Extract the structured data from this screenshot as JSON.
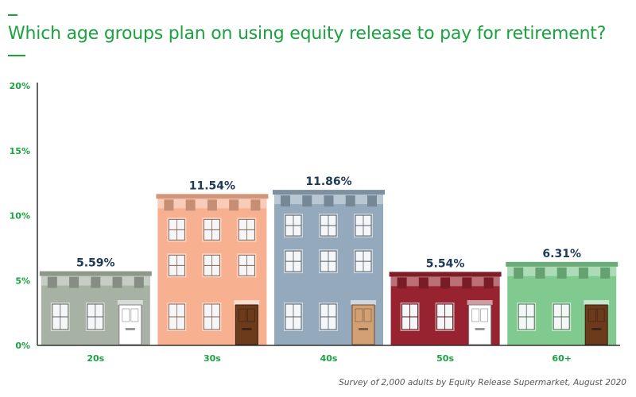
{
  "title": "Which age groups plan on using equity release to pay for retirement?",
  "footnote": "Survey of 2,000 adults by Equity Release Supermarket, August 2020",
  "colors": {
    "accent": "#1aa33f",
    "value_text": "#1e3a56",
    "axis": "#333333"
  },
  "chart_data": {
    "type": "bar",
    "title": "Which age groups plan on using equity release to pay for retirement?",
    "xlabel": "",
    "ylabel": "",
    "categories": [
      "20s",
      "30s",
      "40s",
      "50s",
      "60+"
    ],
    "values": [
      5.59,
      11.54,
      11.86,
      5.54,
      6.31
    ],
    "value_labels": [
      "5.59%",
      "11.54%",
      "11.86%",
      "5.54%",
      "6.31%"
    ],
    "ylim": [
      0,
      20
    ],
    "yticks": [
      0,
      5,
      10,
      15,
      20
    ],
    "ytick_labels": [
      "0%",
      "5%",
      "10%",
      "15%",
      "20%"
    ],
    "grid": false,
    "bar_style": "townhouse illustrations",
    "bar_colors": [
      "#a8b2a4",
      "#f7b191",
      "#94a9bb",
      "#96232f",
      "#80c98f"
    ],
    "door_colors": [
      "#ffffff",
      "#6b3b1c",
      "#d2a072",
      "#ffffff",
      "#6b3b1c"
    ]
  }
}
